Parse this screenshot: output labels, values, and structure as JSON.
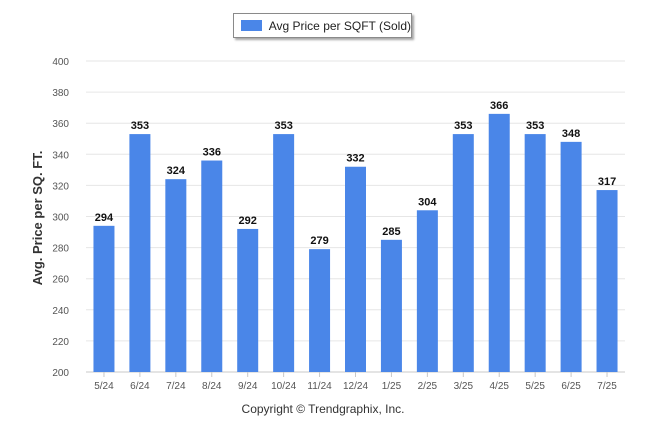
{
  "colors": {
    "bar": "#4a86e8",
    "grid": "#e6e6e6",
    "axis_text": "#555555",
    "value_label": "#111111"
  },
  "footer": {
    "copyright": "Copyright © Trendgraphix, Inc."
  },
  "chart_data": {
    "type": "bar",
    "title": "",
    "legend": "Avg Price per SQFT (Sold)",
    "legend_position": "top-center",
    "xlabel": "",
    "ylabel": "Avg. Price per SQ. FT.",
    "ylim": [
      200,
      400
    ],
    "yticks": [
      200,
      220,
      240,
      260,
      280,
      300,
      320,
      340,
      360,
      380,
      400
    ],
    "grid": true,
    "categories": [
      "5/24",
      "6/24",
      "7/24",
      "8/24",
      "9/24",
      "10/24",
      "11/24",
      "12/24",
      "1/25",
      "2/25",
      "3/25",
      "4/25",
      "5/25",
      "6/25",
      "7/25"
    ],
    "series": [
      {
        "name": "Avg Price per SQFT (Sold)",
        "values": [
          294,
          353,
          324,
          336,
          292,
          353,
          279,
          332,
          285,
          304,
          353,
          366,
          353,
          348,
          317
        ]
      }
    ]
  }
}
